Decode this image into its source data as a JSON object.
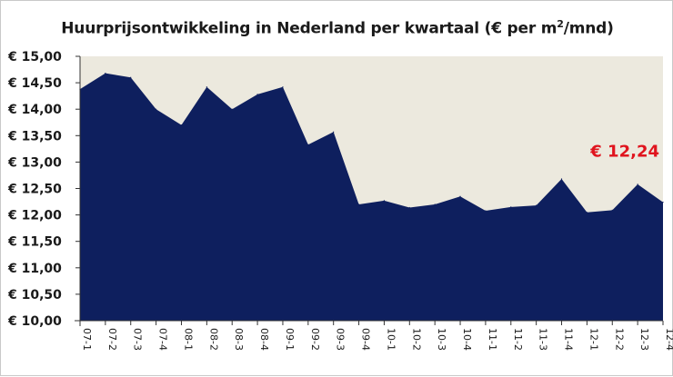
{
  "chart_data": {
    "type": "area",
    "title": "Huurprijsontwikkeling in Nederland per kwartaal (€ per m",
    "title_superscript": "2",
    "title_suffix": "/mnd)",
    "xlabel": "",
    "ylabel": "",
    "ylim": [
      10.0,
      15.0
    ],
    "y_ticks": [
      "€ 10,00",
      "€ 10,50",
      "€ 11,00",
      "€ 11,50",
      "€ 12,00",
      "€ 12,50",
      "€ 13,00",
      "€ 13,50",
      "€ 14,00",
      "€ 14,50",
      "€ 15,00"
    ],
    "y_tick_values": [
      10.0,
      10.5,
      11.0,
      11.5,
      12.0,
      12.5,
      13.0,
      13.5,
      14.0,
      14.5,
      15.0
    ],
    "categories": [
      "07-1",
      "07-2",
      "07-3",
      "07-4",
      "08-1",
      "08-2",
      "08-3",
      "08-4",
      "09-1",
      "09-2",
      "09-3",
      "09-4",
      "10-1",
      "10-2",
      "10-3",
      "10-4",
      "11-1",
      "11-2",
      "11-3",
      "11-4",
      "12-1",
      "12-2",
      "12-3",
      "12-4"
    ],
    "series": [
      {
        "values": [
          14.38,
          14.68,
          14.6,
          14.0,
          13.7,
          14.42,
          14.0,
          14.28,
          14.42,
          13.33,
          13.57,
          12.2,
          12.27,
          12.14,
          12.2,
          12.35,
          12.08,
          12.15,
          12.18,
          12.68,
          12.05,
          12.09,
          12.58,
          12.24
        ],
        "color": "#0e1f5e"
      }
    ],
    "annotation": {
      "text": "€ 12,24",
      "category": "12-4",
      "color": "#e0141e"
    },
    "plot_background": "#ece9de",
    "grid": false,
    "legend": "none"
  }
}
